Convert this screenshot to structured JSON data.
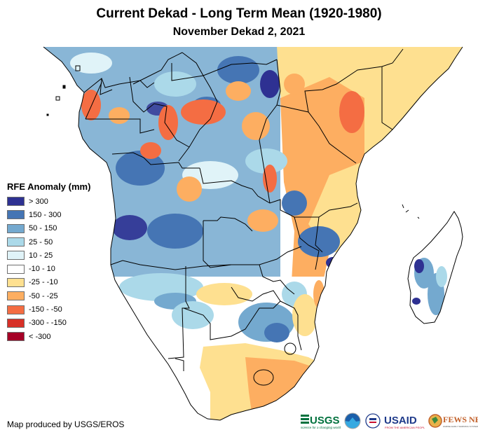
{
  "header": {
    "title": "Current Dekad - Long Term Mean (1920-1980)",
    "subtitle": "November Dekad 2, 2021"
  },
  "legend": {
    "title": "RFE Anomaly (mm)",
    "items": [
      {
        "label": "> 300",
        "color": "#2e3192"
      },
      {
        "label": "150 - 300",
        "color": "#4575b4"
      },
      {
        "label": "50 - 150",
        "color": "#74a9cf"
      },
      {
        "label": "25 - 50",
        "color": "#abd9e9"
      },
      {
        "label": "10 - 25",
        "color": "#e0f3f8"
      },
      {
        "label": "-10 - 10",
        "color": "#ffffff"
      },
      {
        "label": "-25 - -10",
        "color": "#fee090"
      },
      {
        "label": "-50 - -25",
        "color": "#fdae61"
      },
      {
        "label": "-150 - -50",
        "color": "#f46d43"
      },
      {
        "label": "-300 - -150",
        "color": "#d73027"
      },
      {
        "label": "< -300",
        "color": "#a50026"
      }
    ]
  },
  "footer": {
    "credit": "Map produced by USGS/EROS",
    "logos": [
      {
        "name": "USGS",
        "tagline": "science for a changing world",
        "icon": "usgs-logo"
      },
      {
        "name": "NOAA",
        "icon": "noaa-logo"
      },
      {
        "name": "USAID",
        "tagline": "FROM THE AMERICAN PEOPLE",
        "icon": "usaid-logo"
      },
      {
        "name": "FEWS NET",
        "tagline": "FAMINE EARLY WARNING SYSTEMS NETWORK",
        "icon": "fewsnet-logo"
      }
    ]
  },
  "map": {
    "region": "Central and Southern Africa",
    "variable": "RFE Anomaly (mm)"
  }
}
